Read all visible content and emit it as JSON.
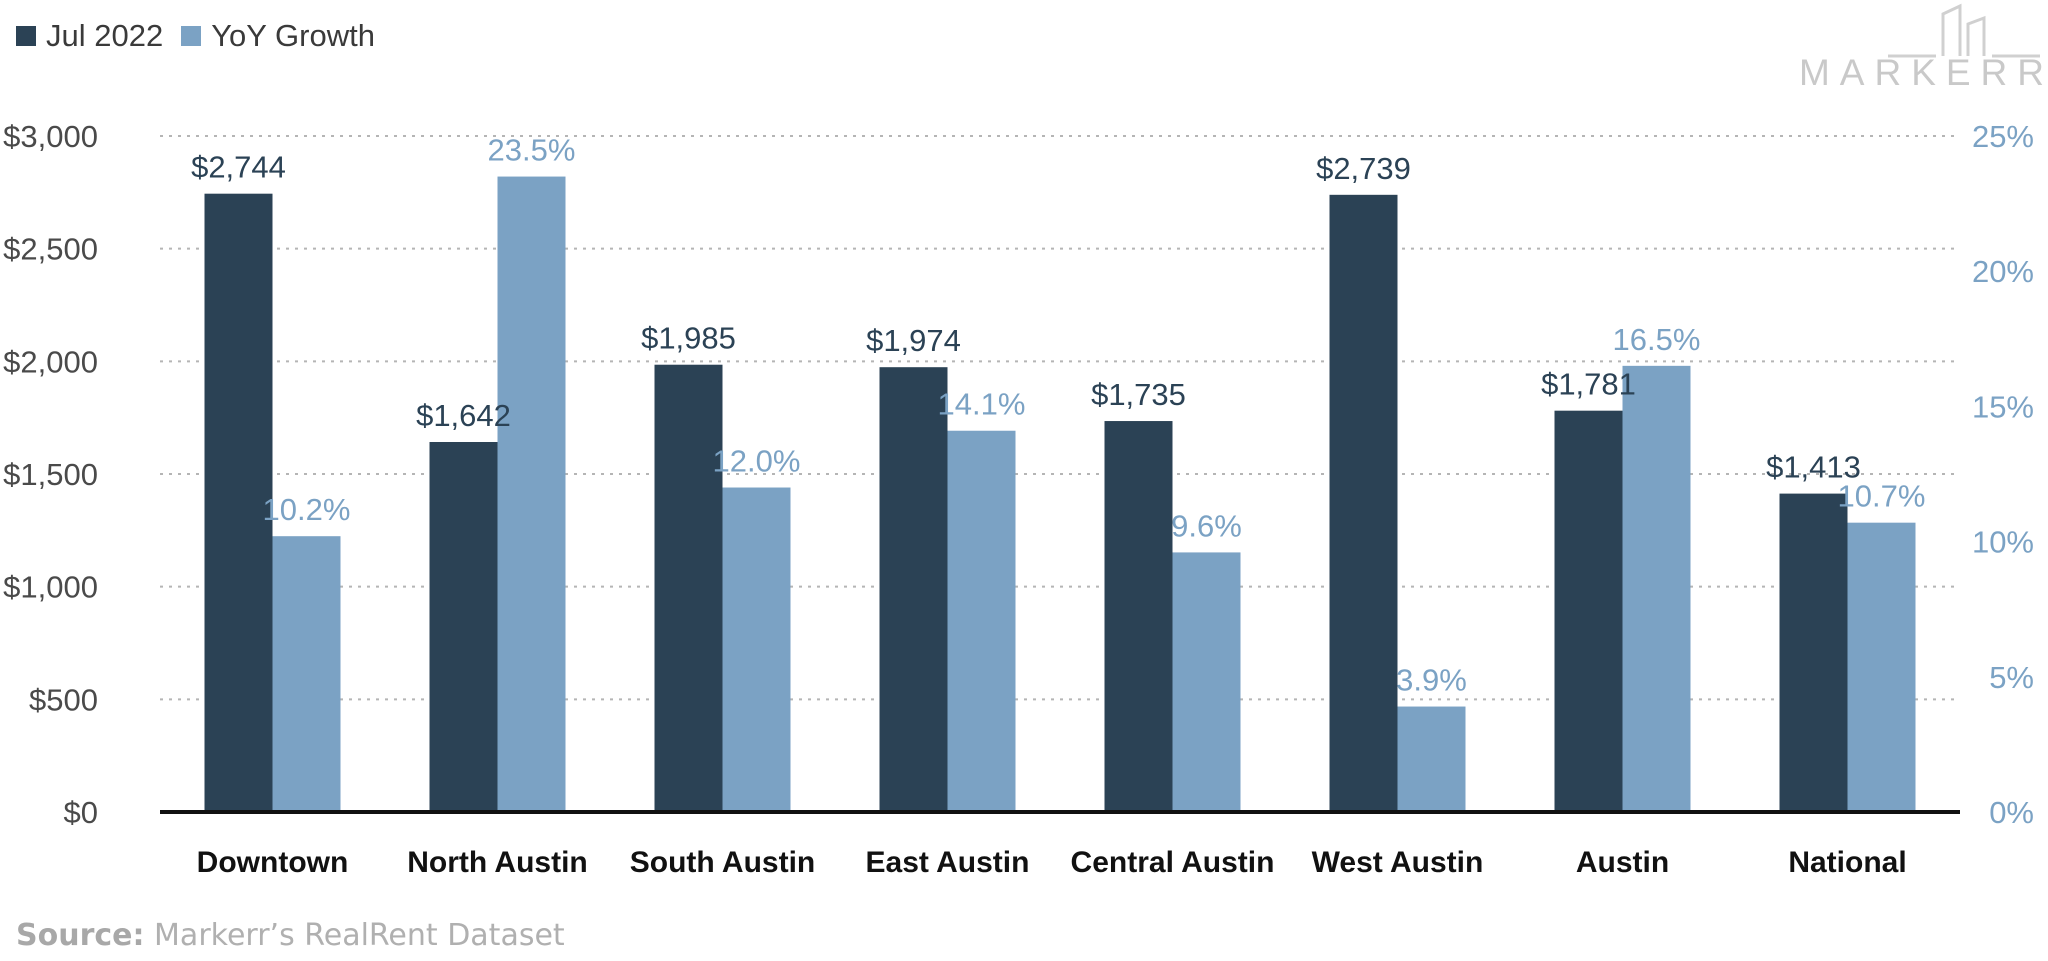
{
  "legend": {
    "series1_label": "Jul 2022",
    "series2_label": "YoY Growth"
  },
  "logo": {
    "text": "MARKERR"
  },
  "source": {
    "label": "Source:",
    "text": "Markerr’s RealRent Dataset"
  },
  "colors": {
    "rent": "#2b4255",
    "growth": "#7ba2c4",
    "left_axis_text": "#4a4a4a",
    "right_axis_text": "#7ba2c4",
    "grid": "#b5b5b5",
    "baseline": "#111111"
  },
  "chart_data": {
    "type": "bar",
    "categories": [
      "Downtown",
      "North Austin",
      "South Austin",
      "East Austin",
      "Central Austin",
      "West Austin",
      "Austin",
      "National"
    ],
    "series": [
      {
        "name": "Jul 2022",
        "axis": "left",
        "values": [
          2744,
          1642,
          1985,
          1974,
          1735,
          2739,
          1781,
          1413
        ],
        "labels": [
          "$2,744",
          "$1,642",
          "$1,985",
          "$1,974",
          "$1,735",
          "$2,739",
          "$1,781",
          "$1,413"
        ]
      },
      {
        "name": "YoY Growth",
        "axis": "right",
        "values": [
          10.2,
          23.5,
          12.0,
          14.1,
          9.6,
          3.9,
          16.5,
          10.7
        ],
        "labels": [
          "10.2%",
          "23.5%",
          "12.0%",
          "14.1%",
          "9.6%",
          "3.9%",
          "16.5%",
          "10.7%"
        ]
      }
    ],
    "left_axis": {
      "ylim": [
        0,
        3000
      ],
      "ticks": [
        0,
        500,
        1000,
        1500,
        2000,
        2500,
        3000
      ],
      "tick_labels": [
        "$0",
        "$500",
        "$1,000",
        "$1,500",
        "$2,000",
        "$2,500",
        "$3,000"
      ]
    },
    "right_axis": {
      "ylim": [
        0,
        25
      ],
      "ticks": [
        0,
        5,
        10,
        15,
        20,
        25
      ],
      "tick_labels": [
        "0%",
        "5%",
        "10%",
        "15%",
        "20%",
        "25%"
      ]
    },
    "grid": true,
    "legend_position": "top-left"
  }
}
